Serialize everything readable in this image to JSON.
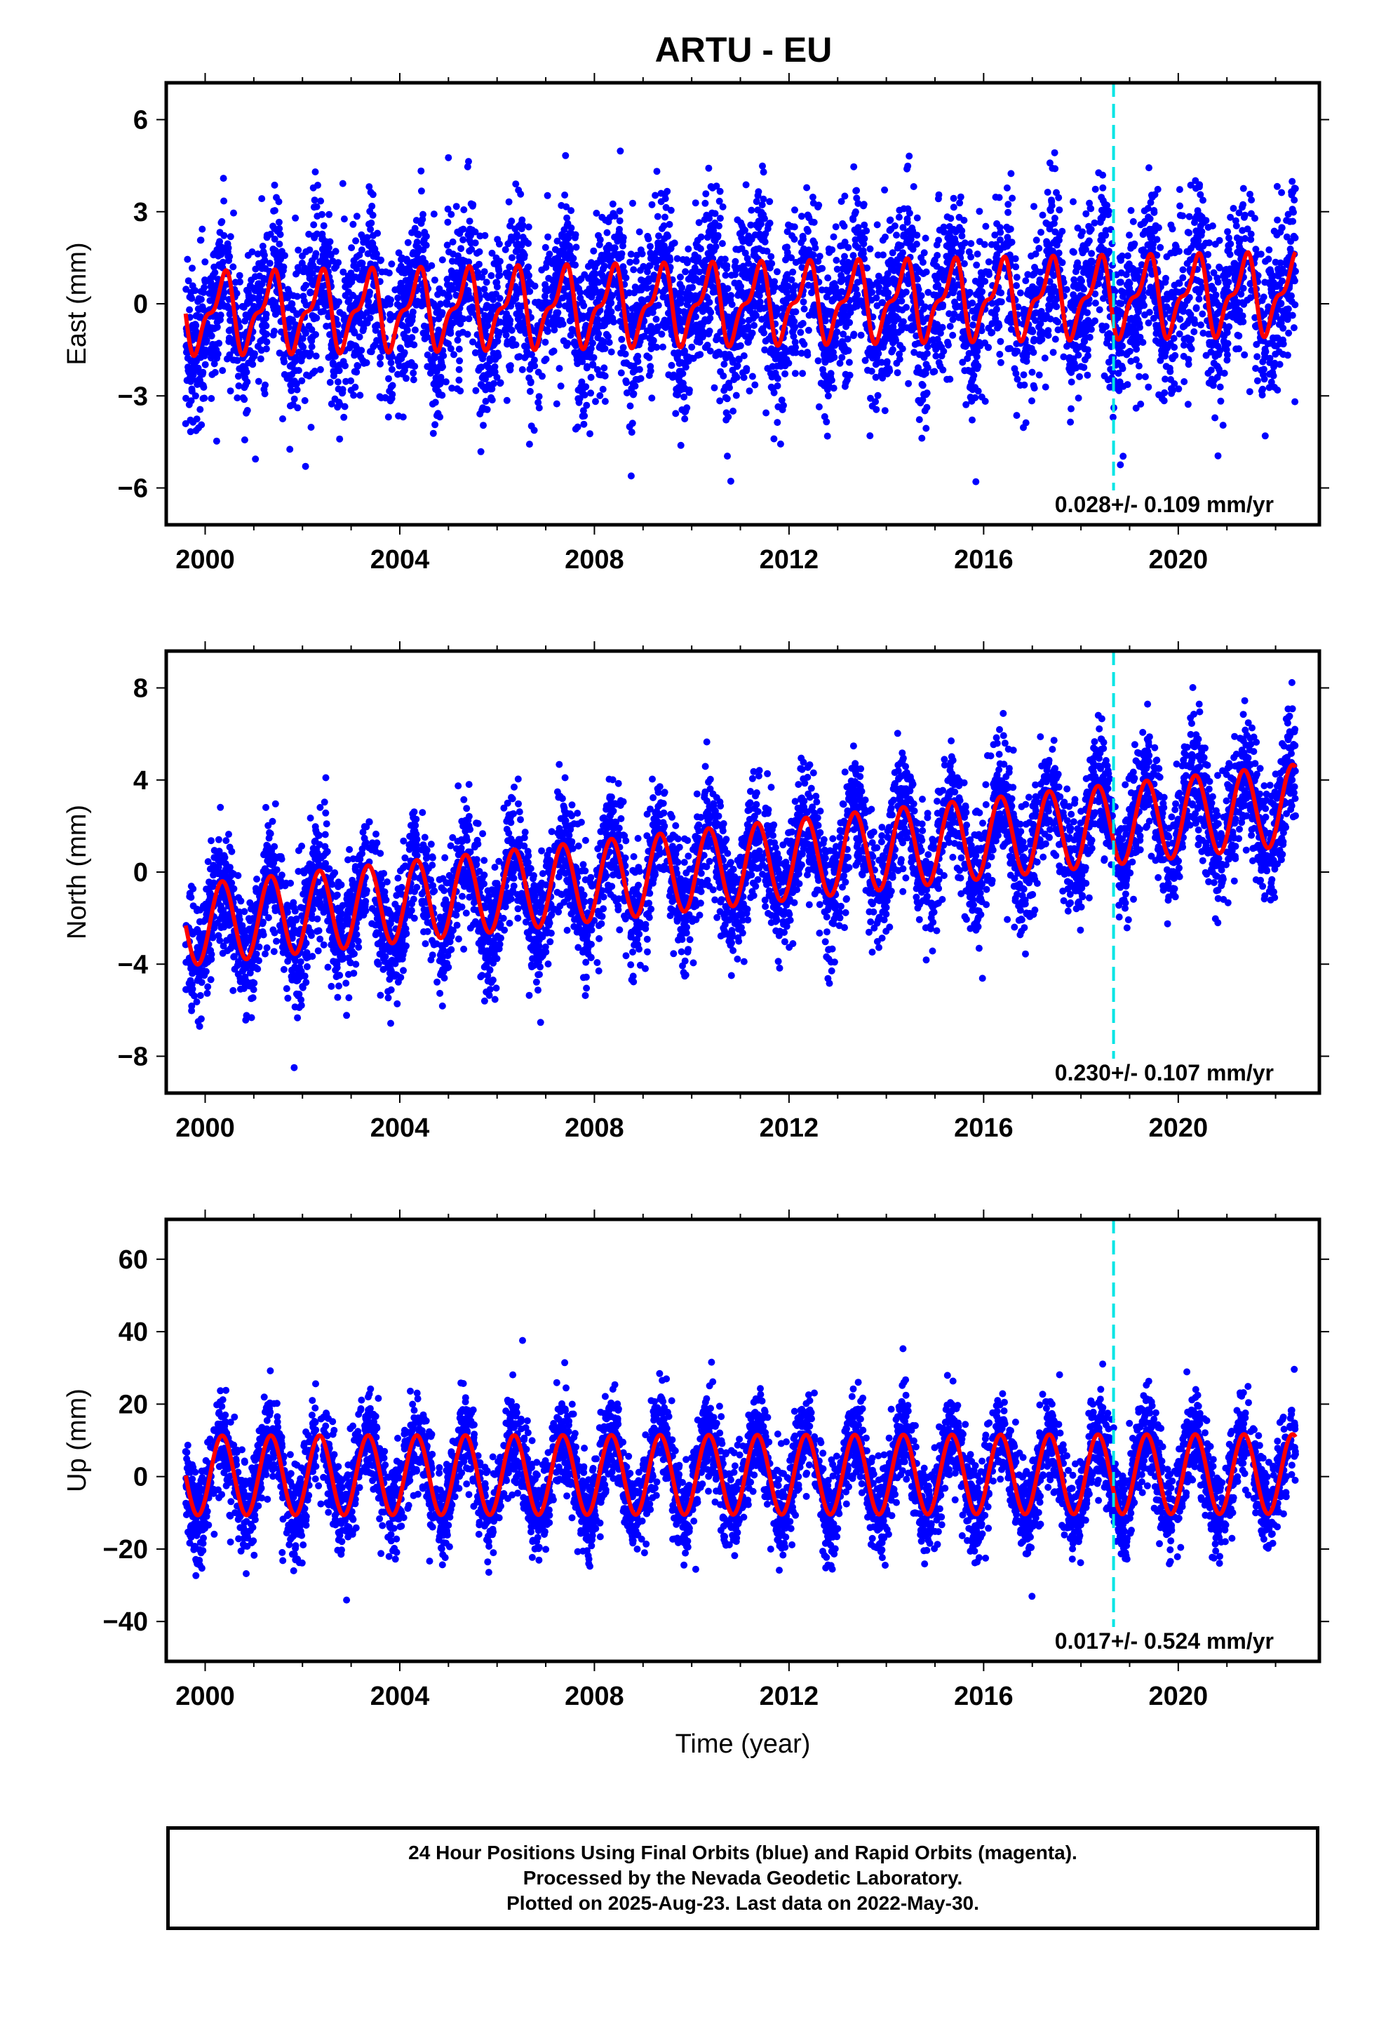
{
  "title": "ARTU - EU",
  "colors": {
    "observations": "#0000ff",
    "model_fit": "#ff0000",
    "event_marker": "#00e5e5",
    "axes": "#000000"
  },
  "chart_data": [
    {
      "type": "scatter",
      "component": "East",
      "ylabel": "East (mm)",
      "xlabel": "",
      "xlim": [
        1999.2,
        2022.9
      ],
      "ylim": [
        -7.2,
        7.2
      ],
      "x_ticks": [
        2000,
        2004,
        2008,
        2012,
        2016,
        2020
      ],
      "y_ticks": [
        -6,
        -3,
        0,
        3,
        6
      ],
      "y_tick_labels": [
        "−6",
        "−3",
        "0",
        "3",
        "6"
      ],
      "series": [
        {
          "role": "daily positions",
          "color": "#0000ff",
          "marker": "dot",
          "x_range": [
            1999.6,
            2022.41
          ],
          "noise_sd": 1.3
        },
        {
          "role": "model fit",
          "color": "#ff0000",
          "line": "solid"
        }
      ],
      "model": {
        "rate": 0.028,
        "offset_at_2011": 0.0,
        "annual_amplitude": 1.1,
        "semiannual_amplitude": 0.5
      },
      "event_lines": [
        2018.67
      ],
      "annotation": "0.028+/- 0.109 mm/yr",
      "grid": false
    },
    {
      "type": "scatter",
      "component": "North",
      "ylabel": "North (mm)",
      "xlabel": "",
      "xlim": [
        1999.2,
        2022.9
      ],
      "ylim": [
        -9.6,
        9.6
      ],
      "x_ticks": [
        2000,
        2004,
        2008,
        2012,
        2016,
        2020
      ],
      "y_ticks": [
        -8,
        -4,
        0,
        4,
        8
      ],
      "y_tick_labels": [
        "−8",
        "−4",
        "0",
        "4",
        "8"
      ],
      "series": [
        {
          "role": "daily positions",
          "color": "#0000ff",
          "marker": "dot",
          "x_range": [
            1999.6,
            2022.41
          ],
          "noise_sd": 1.3
        },
        {
          "role": "model fit",
          "color": "#ff0000",
          "line": "solid"
        }
      ],
      "model": {
        "rate": 0.23,
        "offset_at_2011": 0.3,
        "annual_amplitude": 1.75,
        "semiannual_amplitude": 0.0
      },
      "event_lines": [
        2018.67
      ],
      "annotation": "0.230+/- 0.107 mm/yr",
      "grid": false
    },
    {
      "type": "scatter",
      "component": "Up",
      "ylabel": "Up (mm)",
      "xlabel": "Time (year)",
      "xlim": [
        1999.2,
        2022.9
      ],
      "ylim": [
        -51,
        71
      ],
      "x_ticks": [
        2000,
        2004,
        2008,
        2012,
        2016,
        2020
      ],
      "y_ticks": [
        -40,
        -20,
        0,
        20,
        40,
        60
      ],
      "y_tick_labels": [
        "−40",
        "−20",
        "0",
        "20",
        "40",
        "60"
      ],
      "series": [
        {
          "role": "daily positions",
          "color": "#0000ff",
          "marker": "dot",
          "x_range": [
            1999.6,
            2022.41
          ],
          "noise_sd": 6.5
        },
        {
          "role": "model fit",
          "color": "#ff0000",
          "line": "solid"
        }
      ],
      "model": {
        "rate": 0.017,
        "offset_at_2011": 0.5,
        "annual_amplitude": 11.0,
        "semiannual_amplitude": 0.0
      },
      "event_lines": [
        2018.67
      ],
      "annotation": "0.017+/- 0.524 mm/yr",
      "grid": false
    }
  ],
  "caption": {
    "line1": "24 Hour Positions Using Final Orbits (blue) and Rapid Orbits (magenta).",
    "line2": "Processed by the Nevada Geodetic Laboratory.",
    "line3": "Plotted on 2025-Aug-23. Last data on 2022-May-30."
  }
}
